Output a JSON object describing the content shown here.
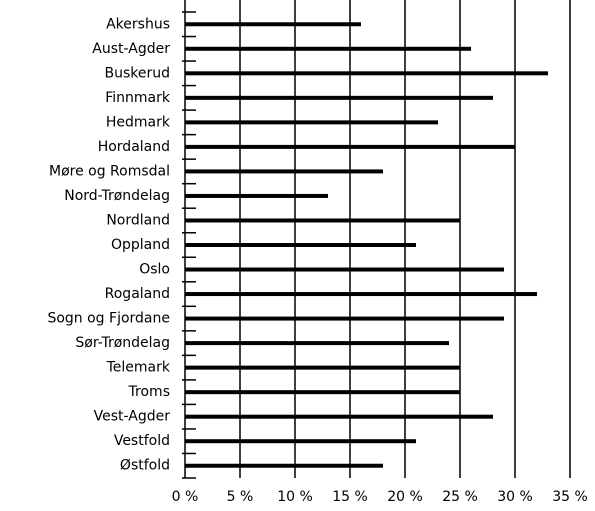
{
  "chart_data": {
    "type": "bar",
    "orientation": "horizontal",
    "categories": [
      "Akershus",
      "Aust-Agder",
      "Buskerud",
      "Finnmark",
      "Hedmark",
      "Hordaland",
      "Møre og Romsdal",
      "Nord-Trøndelag",
      "Nordland",
      "Oppland",
      "Oslo",
      "Rogaland",
      "Sogn og Fjordane",
      "Sør-Trøndelag",
      "Telemark",
      "Troms",
      "Vest-Agder",
      "Vestfold",
      "Østfold"
    ],
    "values": [
      16,
      26,
      33,
      28,
      23,
      30,
      18,
      13,
      25,
      21,
      29,
      32,
      29,
      24,
      25,
      25,
      28,
      21,
      18
    ],
    "color": "#000000",
    "xlim": [
      0,
      35
    ],
    "xticks": [
      {
        "value": 0,
        "label": "0 %"
      },
      {
        "value": 5,
        "label": "5 %"
      },
      {
        "value": 10,
        "label": "10 %"
      },
      {
        "value": 15,
        "label": "15 %"
      },
      {
        "value": 20,
        "label": "20 %"
      },
      {
        "value": 25,
        "label": "25 %"
      },
      {
        "value": 30,
        "label": "30 %"
      },
      {
        "value": 35,
        "label": "35 %"
      }
    ],
    "grid": true
  }
}
